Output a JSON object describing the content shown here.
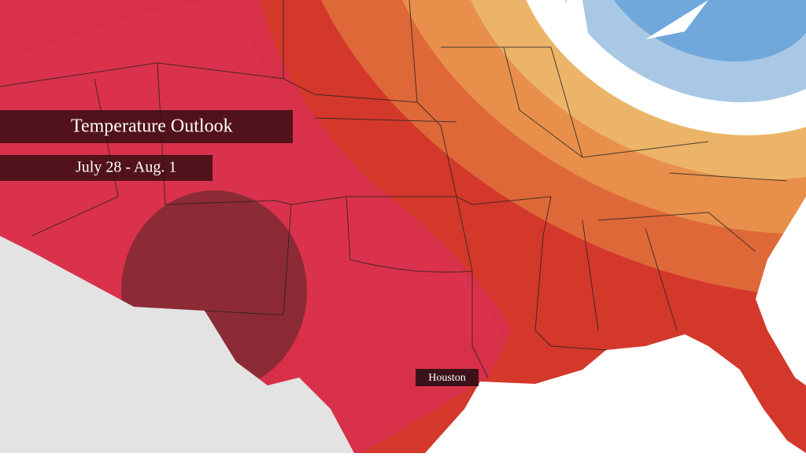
{
  "title": "Temperature Outlook",
  "dates": "July 28 - Aug. 1",
  "city_label": "Houston"
}
